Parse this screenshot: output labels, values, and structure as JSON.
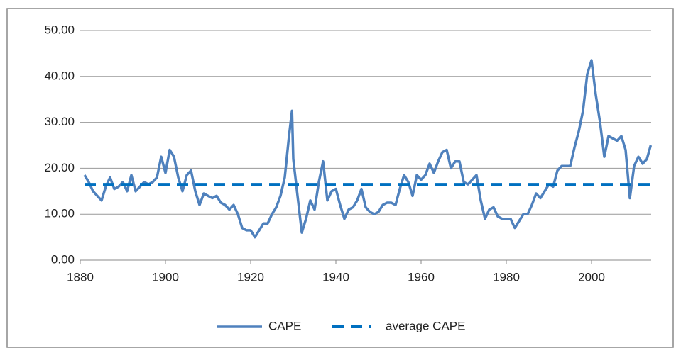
{
  "chart_data": {
    "type": "line",
    "xlim": [
      1880,
      2014
    ],
    "xticks": [
      1880,
      1900,
      1920,
      1940,
      1960,
      1980,
      2000
    ],
    "ylim": [
      0,
      50
    ],
    "yticks": [
      {
        "value": 0,
        "label": "0.00"
      },
      {
        "value": 10,
        "label": "10.00"
      },
      {
        "value": 20,
        "label": "20.00"
      },
      {
        "value": 30,
        "label": "30.00"
      },
      {
        "value": 40,
        "label": "40.00"
      },
      {
        "value": 50,
        "label": "50.00"
      }
    ],
    "grid": true,
    "legend": "bottom",
    "series": [
      {
        "name": "CAPE",
        "color": "#4f81bd",
        "line_style": "solid",
        "x": [
          1881,
          1882,
          1883,
          1884,
          1885,
          1886,
          1887,
          1888,
          1889,
          1890,
          1891,
          1892,
          1893,
          1894,
          1895,
          1896,
          1897,
          1898,
          1899,
          1900,
          1901,
          1902,
          1903,
          1904,
          1905,
          1906,
          1907,
          1908,
          1909,
          1910,
          1911,
          1912,
          1913,
          1914,
          1915,
          1916,
          1917,
          1918,
          1919,
          1920,
          1921,
          1922,
          1923,
          1924,
          1925,
          1926,
          1927,
          1928,
          1929,
          1929.7,
          1930,
          1931,
          1932,
          1933,
          1934,
          1935,
          1936,
          1937,
          1938,
          1939,
          1940,
          1941,
          1942,
          1943,
          1944,
          1945,
          1946,
          1947,
          1948,
          1949,
          1950,
          1951,
          1952,
          1953,
          1954,
          1955,
          1956,
          1957,
          1958,
          1959,
          1960,
          1961,
          1962,
          1963,
          1964,
          1965,
          1966,
          1967,
          1968,
          1969,
          1970,
          1971,
          1972,
          1973,
          1974,
          1975,
          1976,
          1977,
          1978,
          1979,
          1980,
          1981,
          1982,
          1983,
          1984,
          1985,
          1986,
          1987,
          1988,
          1989,
          1990,
          1991,
          1992,
          1993,
          1994,
          1995,
          1996,
          1997,
          1998,
          1999,
          2000,
          2001,
          2002,
          2003,
          2004,
          2005,
          2006,
          2007,
          2008,
          2009,
          2010,
          2011,
          2012,
          2013,
          2013.9
        ],
        "values": [
          18.5,
          17,
          15,
          14,
          13,
          16,
          18,
          15.5,
          16,
          17,
          15,
          18.5,
          15,
          16,
          17,
          16.5,
          17,
          18,
          22.5,
          19,
          24,
          22.5,
          18,
          15,
          18.5,
          19.5,
          15,
          12,
          14.5,
          14,
          13.5,
          14,
          12.5,
          12,
          11,
          12,
          10,
          7,
          6.5,
          6.5,
          5,
          6.5,
          8,
          8,
          10,
          11.5,
          14,
          18,
          27,
          32.5,
          22,
          14,
          6,
          9,
          13,
          11,
          17,
          21.5,
          13,
          15,
          15.5,
          12,
          9,
          11,
          11.5,
          13,
          15.5,
          11.5,
          10.5,
          10,
          10.5,
          12,
          12.5,
          12.5,
          12,
          15.5,
          18.5,
          17,
          14,
          18.5,
          17.5,
          18.5,
          21,
          19,
          21.5,
          23.5,
          24,
          20,
          21.5,
          21.5,
          17,
          16.5,
          17.5,
          18.5,
          13,
          9,
          11,
          11.5,
          9.5,
          9,
          9,
          9,
          7,
          8.5,
          10,
          10,
          12,
          14.5,
          13.5,
          15,
          16.5,
          16,
          19.5,
          20.5,
          20.5,
          20.5,
          24.5,
          28,
          32.5,
          40.5,
          43.5,
          36,
          30,
          22.5,
          27,
          26.5,
          26,
          27,
          24,
          13.5,
          20.5,
          22.5,
          21,
          22,
          25
        ]
      },
      {
        "name": "average CAPE",
        "color": "#0070c0",
        "line_style": "dashed",
        "x": [
          1881,
          2014
        ],
        "values": [
          16.5,
          16.5
        ]
      }
    ]
  }
}
